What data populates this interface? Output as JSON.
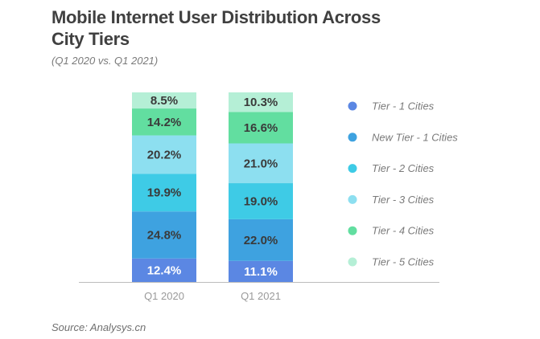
{
  "title": "Mobile Internet User Distribution Across City Tiers",
  "subtitle": "(Q1 2020 vs. Q1 2021)",
  "source": "Source: Analysys.cn",
  "colors": {
    "tier1": "#5b87e3",
    "newtier1": "#3ea2e0",
    "tier2": "#3ecbe6",
    "tier3": "#8ddff0",
    "tier4": "#62dea0",
    "tier5": "#b5efd6",
    "label_dark": "#3a3a3a",
    "label_light": "#ffffff"
  },
  "chart_data": {
    "type": "bar",
    "stacked": true,
    "categories": [
      "Q1 2020",
      "Q1 2021"
    ],
    "series": [
      {
        "name": "Tier - 1 Cities",
        "values": [
          12.4,
          11.1
        ],
        "display": [
          "12.4%",
          "11.1%"
        ],
        "color": "#5b87e3",
        "icon": "circle"
      },
      {
        "name": "New Tier - 1 Cities",
        "values": [
          24.8,
          22.0
        ],
        "display": [
          "24.8%",
          "22.0%"
        ],
        "color": "#3ea2e0",
        "icon": "circle"
      },
      {
        "name": "Tier - 2 Cities",
        "values": [
          19.9,
          19.0
        ],
        "display": [
          "19.9%",
          "19.0%"
        ],
        "color": "#3ecbe6",
        "icon": "circle"
      },
      {
        "name": "Tier - 3 Cities",
        "values": [
          20.2,
          21.0
        ],
        "display": [
          "20.2%",
          "21.0%"
        ],
        "color": "#8ddff0",
        "icon": "circle"
      },
      {
        "name": "Tier - 4 Cities",
        "values": [
          14.2,
          16.6
        ],
        "display": [
          "14.2%",
          "16.6%"
        ],
        "color": "#62dea0",
        "icon": "circle"
      },
      {
        "name": "Tier - 5 Cities",
        "values": [
          8.5,
          10.3
        ],
        "display": [
          "8.5%",
          "10.3%"
        ],
        "color": "#b5efd6",
        "icon": "circle"
      }
    ],
    "ylim": [
      0,
      100
    ],
    "unit": "%",
    "grid": false,
    "legend": "right"
  }
}
